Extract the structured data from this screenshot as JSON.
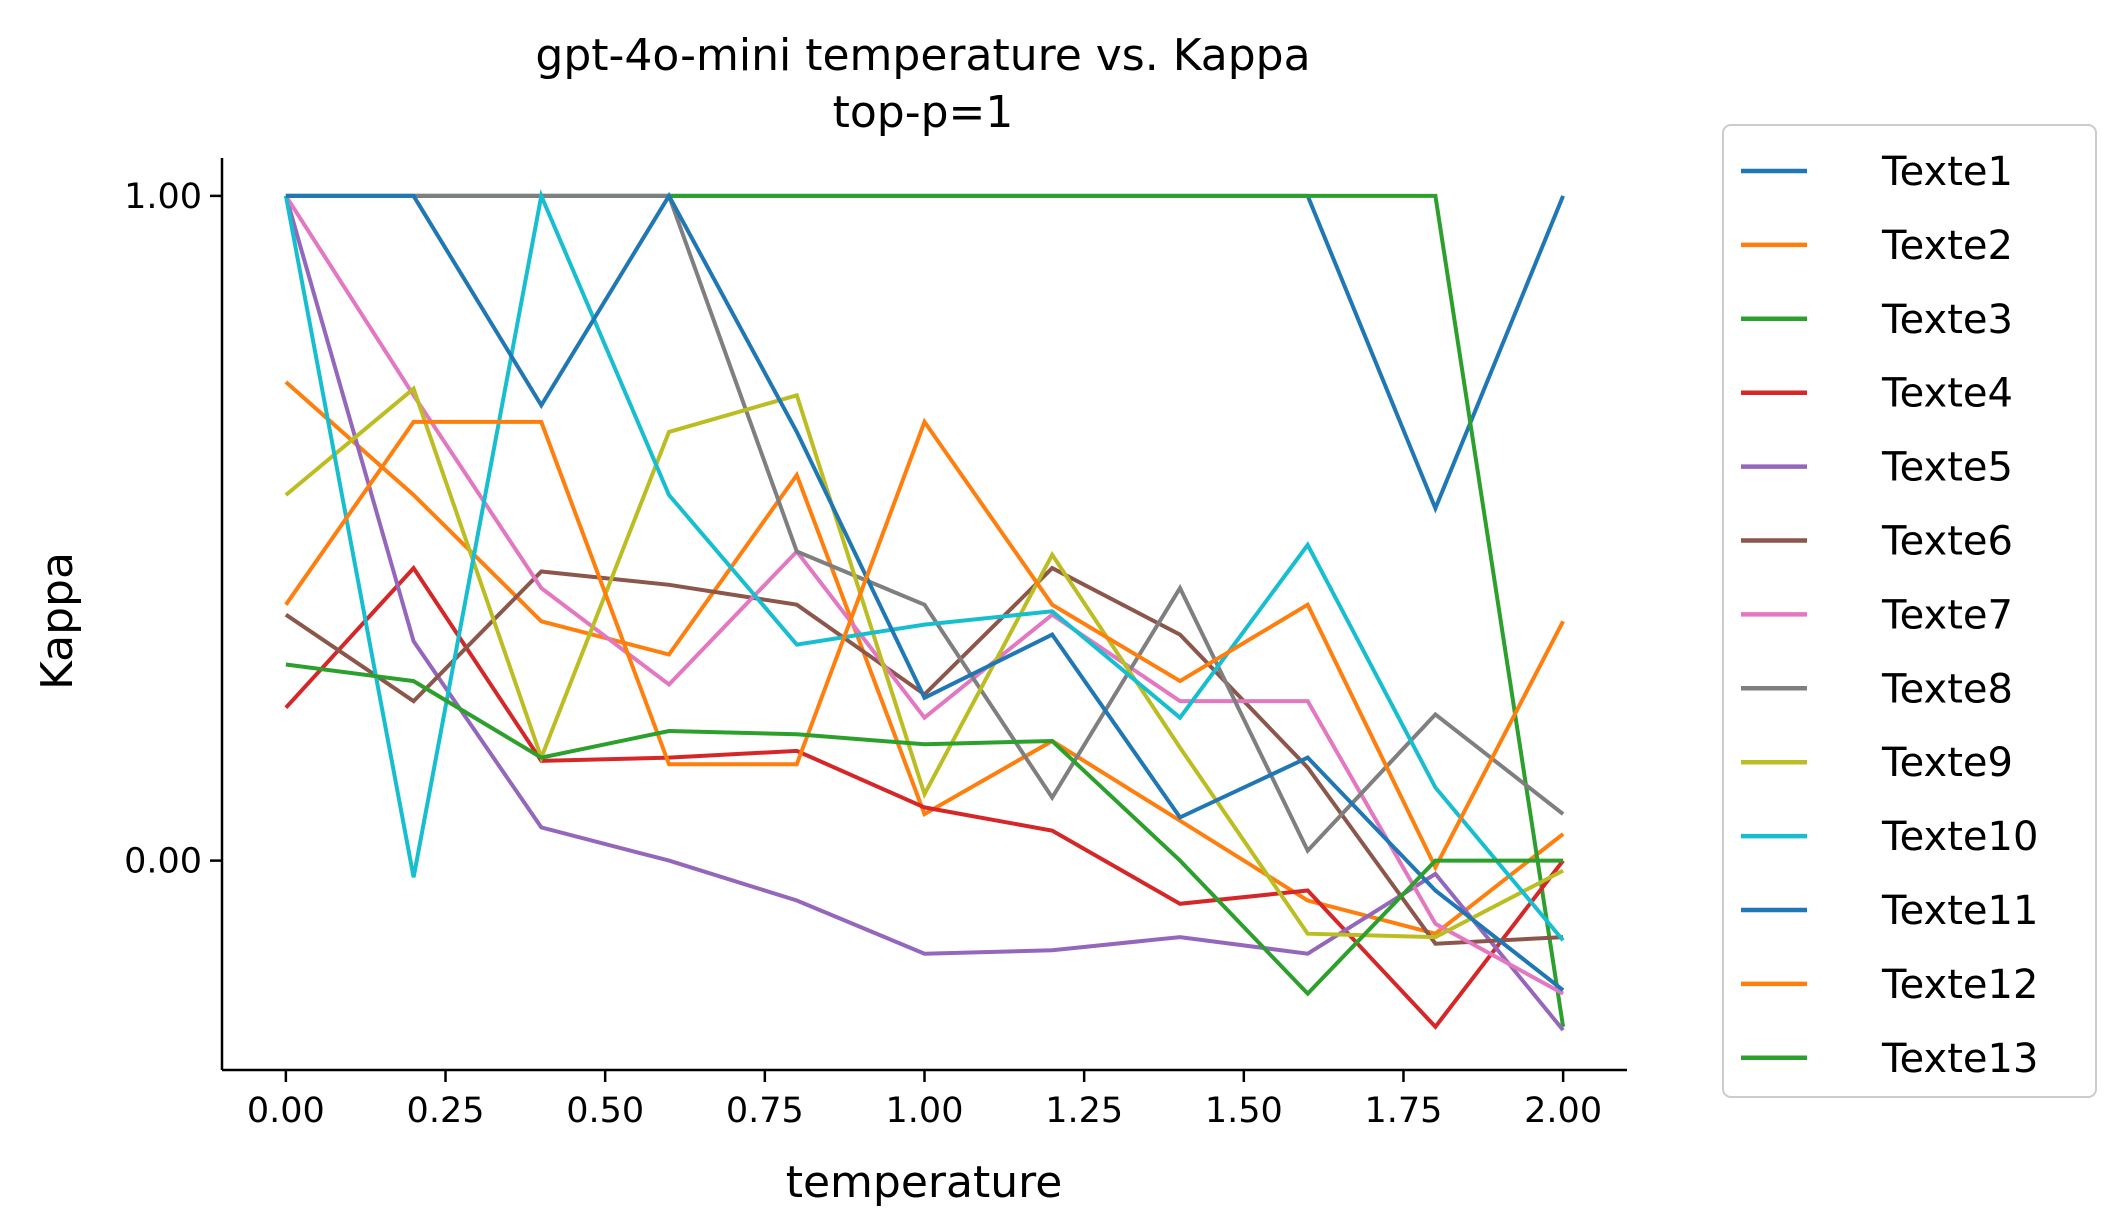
{
  "chart_data": {
    "type": "line",
    "title": "gpt-4o-mini temperature vs. Kappa",
    "subtitle": "top-p=1",
    "xlabel": "temperature",
    "ylabel": "Kappa",
    "xlim": [
      -0.1,
      2.1
    ],
    "ylim": [
      -0.315,
      1.057
    ],
    "x_ticks": [
      "0.00",
      "0.25",
      "0.50",
      "0.75",
      "1.00",
      "1.25",
      "1.50",
      "1.75",
      "2.00"
    ],
    "y_ticks": [
      "0.00",
      "1.00"
    ],
    "grid": false,
    "legend_position": "outside-right",
    "x": [
      0.0,
      0.2,
      0.4,
      0.6,
      0.8,
      1.0,
      1.2,
      1.4,
      1.6,
      1.8,
      2.0
    ],
    "series": [
      {
        "name": "Texte1",
        "color": "#1f77b4",
        "values": [
          1.0,
          1.0,
          1.0,
          1.0,
          1.0,
          1.0,
          1.0,
          1.0,
          1.0,
          0.53,
          1.0
        ]
      },
      {
        "name": "Texte2",
        "color": "#ff7f0e",
        "values": [
          0.72,
          0.55,
          0.36,
          0.31,
          0.58,
          0.07,
          0.18,
          0.06,
          -0.06,
          -0.11,
          0.04
        ]
      },
      {
        "name": "Texte3",
        "color": "#2ca02c",
        "values": [
          1.0,
          1.0,
          1.0,
          1.0,
          1.0,
          1.0,
          1.0,
          1.0,
          1.0,
          1.0,
          -0.25
        ]
      },
      {
        "name": "Texte4",
        "color": "#d62728",
        "values": [
          0.23,
          0.44,
          0.15,
          0.155,
          0.165,
          0.08,
          0.045,
          -0.065,
          -0.045,
          -0.25,
          0.0
        ]
      },
      {
        "name": "Texte5",
        "color": "#9467bd",
        "values": [
          1.0,
          0.33,
          0.05,
          0.0,
          -0.06,
          -0.14,
          -0.135,
          -0.115,
          -0.14,
          -0.02,
          -0.255
        ]
      },
      {
        "name": "Texte6",
        "color": "#8c564b",
        "values": [
          0.37,
          0.24,
          0.435,
          0.415,
          0.385,
          0.25,
          0.44,
          0.34,
          0.14,
          -0.125,
          -0.115
        ]
      },
      {
        "name": "Texte7",
        "color": "#e377c2",
        "values": [
          1.0,
          0.7,
          0.41,
          0.265,
          0.465,
          0.215,
          0.37,
          0.24,
          0.24,
          -0.095,
          -0.2
        ]
      },
      {
        "name": "Texte8",
        "color": "#7f7f7f",
        "values": [
          1.0,
          1.0,
          1.0,
          1.0,
          0.465,
          0.385,
          0.095,
          0.41,
          0.015,
          0.22,
          0.07
        ]
      },
      {
        "name": "Texte9",
        "color": "#bcbd22",
        "values": [
          0.55,
          0.71,
          0.155,
          0.645,
          0.7,
          0.1,
          0.46,
          0.17,
          -0.11,
          -0.115,
          -0.015
        ]
      },
      {
        "name": "Texte10",
        "color": "#17becf",
        "values": [
          1.0,
          -0.025,
          1.0,
          0.55,
          0.325,
          0.355,
          0.375,
          0.215,
          0.475,
          0.11,
          -0.12
        ]
      },
      {
        "name": "Texte11",
        "color": "#1f77b4",
        "values": [
          1.0,
          1.0,
          0.685,
          1.0,
          0.645,
          0.245,
          0.34,
          0.065,
          0.155,
          -0.045,
          -0.195
        ]
      },
      {
        "name": "Texte12",
        "color": "#ff7f0e",
        "values": [
          0.385,
          0.66,
          0.66,
          0.145,
          0.145,
          0.66,
          0.385,
          0.27,
          0.385,
          -0.01,
          0.36
        ]
      },
      {
        "name": "Texte13",
        "color": "#2ca02c",
        "values": [
          0.295,
          0.27,
          0.155,
          0.195,
          0.19,
          0.175,
          0.18,
          0.0,
          -0.2,
          0.0,
          0.0
        ]
      }
    ]
  }
}
